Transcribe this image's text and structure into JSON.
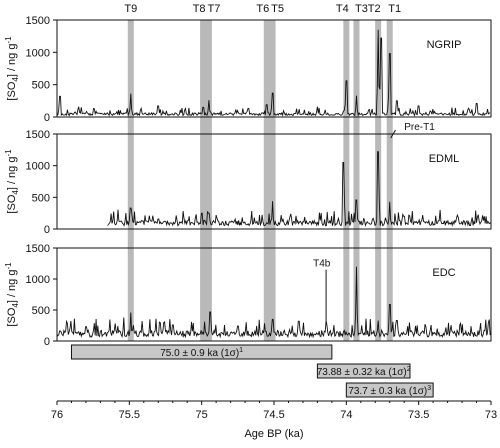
{
  "chart_data": {
    "type": "line",
    "xlabel": "Age BP (ka)",
    "x_ticks": [
      "76",
      "75.5",
      "75",
      "74.5",
      "74",
      "73.5",
      "73"
    ],
    "x_tick_values": [
      76,
      75.5,
      75,
      74.5,
      74,
      73.5,
      73
    ],
    "xlim": [
      76,
      73
    ],
    "x_reversed": true,
    "ylabel_parts": {
      "pre": "[SO",
      "sub": "4",
      "post": "] / ng g",
      "sup": "-1"
    },
    "y_ticks": [
      "0",
      "500",
      "1000",
      "1500"
    ],
    "y_tick_values": [
      0,
      500,
      1000,
      1500
    ],
    "ylim": [
      0,
      1500
    ],
    "grid": false,
    "tie_points": [
      {
        "label": "T9",
        "age": 75.49
      },
      {
        "label": "T8",
        "age": 74.99
      },
      {
        "label": "T7",
        "age": 74.95
      },
      {
        "label": "T6",
        "age": 74.55
      },
      {
        "label": "T5",
        "age": 74.51
      },
      {
        "label": "T4",
        "age": 74.0
      },
      {
        "label": "T3",
        "age": 73.93
      },
      {
        "label": "T2",
        "age": 73.78
      },
      {
        "label": "T1",
        "age": 73.7
      }
    ],
    "series": [
      {
        "name": "NGRIP",
        "baseline": 45,
        "peaks": [
          [
            75.98,
            320
          ],
          [
            75.85,
            160
          ],
          [
            75.49,
            360
          ],
          [
            75.3,
            170
          ],
          [
            74.99,
            150
          ],
          [
            74.95,
            260
          ],
          [
            74.55,
            190
          ],
          [
            74.51,
            370
          ],
          [
            74.2,
            160
          ],
          [
            74.0,
            560
          ],
          [
            73.93,
            330
          ],
          [
            73.78,
            1350
          ],
          [
            73.76,
            1220
          ],
          [
            73.7,
            980
          ],
          [
            73.65,
            250
          ],
          [
            73.5,
            170
          ],
          [
            73.1,
            210
          ]
        ]
      },
      {
        "name": "EDML",
        "baseline": 95,
        "peaks": [
          [
            75.49,
            330
          ],
          [
            75.3,
            160
          ],
          [
            75.0,
            250
          ],
          [
            74.95,
            250
          ],
          [
            74.9,
            220
          ],
          [
            74.51,
            440
          ],
          [
            74.45,
            220
          ],
          [
            74.02,
            1050
          ],
          [
            73.93,
            460
          ],
          [
            73.78,
            1220
          ],
          [
            73.7,
            430
          ],
          [
            73.6,
            200
          ]
        ]
      },
      {
        "name": "EDC",
        "baseline": 120,
        "peaks": [
          [
            75.8,
            230
          ],
          [
            75.49,
            460
          ],
          [
            75.2,
            260
          ],
          [
            74.94,
            470
          ],
          [
            74.75,
            240
          ],
          [
            74.51,
            350
          ],
          [
            74.33,
            320
          ],
          [
            74.14,
            330
          ],
          [
            73.93,
            1200
          ],
          [
            73.78,
            330
          ],
          [
            73.7,
            590
          ],
          [
            73.65,
            330
          ],
          [
            73.45,
            230
          ]
        ]
      }
    ],
    "annotations": [
      "Pre-T1",
      "T4b"
    ],
    "age_bars": [
      {
        "label": "75.0 ± 0.9 ka (1σ)",
        "sup": "1",
        "from": 75.9,
        "to": 74.1
      },
      {
        "label": "73.88 ± 0.32 ka (1σ)",
        "sup": "2",
        "from": 74.2,
        "to": 73.56
      },
      {
        "label": "73.7 ± 0.3 ka (1σ)",
        "sup": "3",
        "from": 74.0,
        "to": 73.4
      }
    ]
  }
}
